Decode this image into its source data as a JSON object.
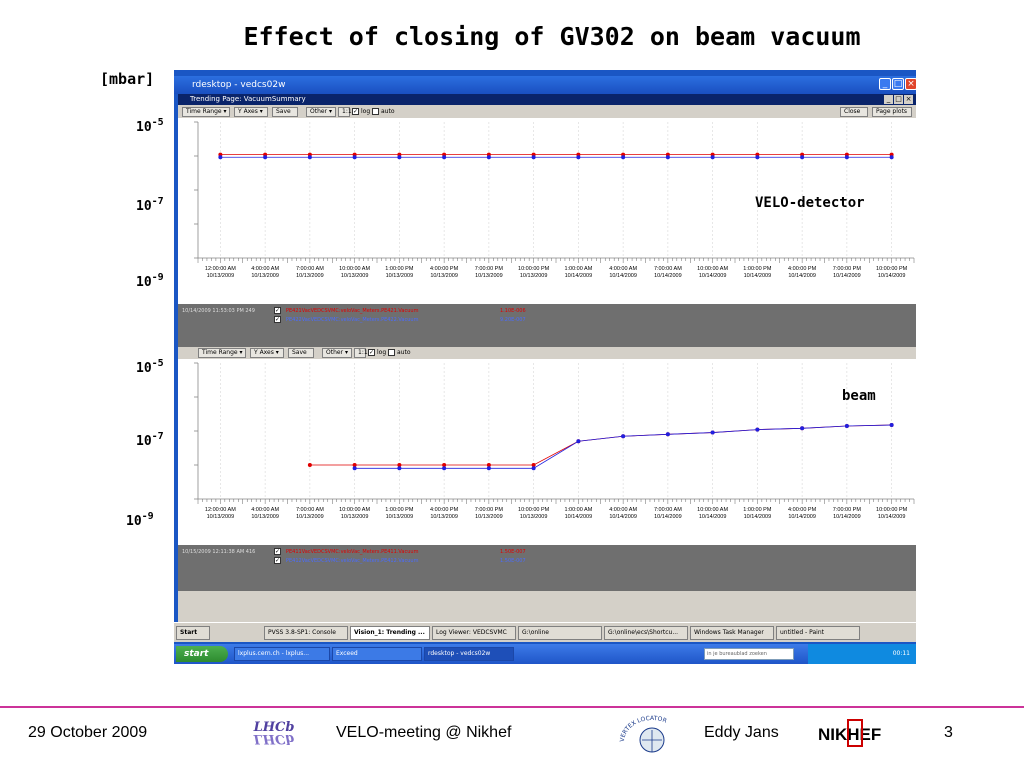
{
  "slide": {
    "title": "Effect of closing of GV302 on beam vacuum",
    "unit": "[mbar]",
    "axis_top": [
      {
        "base": "10",
        "exp": "-5"
      },
      {
        "base": "10",
        "exp": "-7"
      },
      {
        "base": "10",
        "exp": "-9"
      }
    ],
    "axis_bottom": [
      {
        "base": "10",
        "exp": "-5"
      },
      {
        "base": "10",
        "exp": "-7"
      },
      {
        "base": "10",
        "exp": "-9"
      }
    ],
    "annot_top": "VELO-detector",
    "annot_bottom": "beam"
  },
  "rdesktop": {
    "title": "rdesktop - vedcs02w",
    "trend_title": "Trending Page: VacuumSummary"
  },
  "toolbar": {
    "time_range": "Time Range",
    "y_axes": "Y Axes",
    "save": "Save",
    "other": "Other",
    "ratio": "1:1",
    "log": "log",
    "auto": "auto",
    "close": "Close",
    "page_plots": "Page plots"
  },
  "time_labels": [
    {
      "t": "12:00:00 AM",
      "d": "10/13/2009"
    },
    {
      "t": "4:00:00 AM",
      "d": "10/13/2009"
    },
    {
      "t": "7:00:00 AM",
      "d": "10/13/2009"
    },
    {
      "t": "10:00:00 AM",
      "d": "10/13/2009"
    },
    {
      "t": "1:00:00 PM",
      "d": "10/13/2009"
    },
    {
      "t": "4:00:00 PM",
      "d": "10/13/2009"
    },
    {
      "t": "7:00:00 PM",
      "d": "10/13/2009"
    },
    {
      "t": "10:00:00 PM",
      "d": "10/13/2009"
    },
    {
      "t": "1:00:00 AM",
      "d": "10/14/2009"
    },
    {
      "t": "4:00:00 AM",
      "d": "10/14/2009"
    },
    {
      "t": "7:00:00 AM",
      "d": "10/14/2009"
    },
    {
      "t": "10:00:00 AM",
      "d": "10/14/2009"
    },
    {
      "t": "1:00:00 PM",
      "d": "10/14/2009"
    },
    {
      "t": "4:00:00 PM",
      "d": "10/14/2009"
    },
    {
      "t": "7:00:00 PM",
      "d": "10/14/2009"
    },
    {
      "t": "10:00:00 PM",
      "d": "10/14/2009"
    }
  ],
  "panel_top": {
    "timestamp": "10/14/2009 11:53:03 PM 249",
    "lines": [
      {
        "label": "PE421VacVEDCSVMC:veloVac_Meters.PE421.Vacuum",
        "value": "1.10E-006",
        "color": "#e00000"
      },
      {
        "label": "PE422VacVEDCSVMC:veloVac_Meters.PE422.Vacuum",
        "value": "9.20E-007",
        "color": "#2020e0"
      }
    ]
  },
  "panel_bottom": {
    "timestamp": "10/15/2009 12:11:38 AM 416",
    "lines": [
      {
        "label": "PE411VacVEDCSVMC:veloVac_Meters.PE411.Vacuum",
        "value": "1.50E-007",
        "color": "#e00000"
      },
      {
        "label": "PE412VacVEDCSVMC:veloVac_Meters.PE412.Vacuum",
        "value": "1.50E-007",
        "color": "#2020e0"
      }
    ]
  },
  "taskbar_inner": {
    "start": "Start",
    "tasks": [
      "PVSS 3.8-SP1: Console",
      "Vision_1: Trending ...",
      "Log Viewer: VEDCSVMC",
      "G:\\online",
      "G:\\online\\ecs\\Shortcu...",
      "Windows Task Manager",
      "untitled - Paint"
    ]
  },
  "taskbar_outer": {
    "start": "start",
    "tasks": [
      "lxplus.cern.ch - lxplus...",
      "Exceed",
      "rdesktop - vedcs02w"
    ],
    "search": "in je bureaublad zoeken",
    "clock": "00:11"
  },
  "footer": {
    "date": "29 October 2009",
    "lhcb": "LHCb",
    "meeting": "VELO-meeting @ Nikhef",
    "vertex": "VERTEX LOCATOR",
    "author": "Eddy Jans",
    "nikhef": "NIKHEF",
    "page": "3"
  },
  "colors": {
    "red_series": "#e00000",
    "blue_series": "#2020e0",
    "accent_line": "#cc3399"
  },
  "chart_data": [
    {
      "type": "scatter",
      "title": "",
      "ylabel": "[mbar]",
      "log_scale": true,
      "x": [
        "12:00:00 AM 10/13/2009",
        "4:00:00 AM 10/13/2009",
        "7:00:00 AM 10/13/2009",
        "10:00:00 AM 10/13/2009",
        "1:00:00 PM 10/13/2009",
        "4:00:00 PM 10/13/2009",
        "7:00:00 PM 10/13/2009",
        "10:00:00 PM 10/13/2009",
        "1:00:00 AM 10/14/2009",
        "4:00:00 AM 10/14/2009",
        "7:00:00 AM 10/14/2009",
        "10:00:00 AM 10/14/2009",
        "1:00:00 PM 10/14/2009",
        "4:00:00 PM 10/14/2009",
        "7:00:00 PM 10/14/2009",
        "10:00:00 PM 10/14/2009"
      ],
      "series": [
        {
          "name": "PE421VacVEDCSVMC:veloVac_Meters.PE421.Vacuum",
          "values": [
            1.1e-06,
            1.1e-06,
            1.1e-06,
            1.1e-06,
            1.1e-06,
            1.1e-06,
            1.1e-06,
            1.1e-06,
            1.1e-06,
            1.1e-06,
            1.1e-06,
            1.1e-06,
            1.1e-06,
            1.1e-06,
            1.1e-06,
            1.1e-06
          ]
        },
        {
          "name": "PE422VacVEDCSVMC:veloVac_Meters.PE422.Vacuum",
          "values": [
            9.2e-07,
            9.2e-07,
            9.2e-07,
            9.2e-07,
            9.2e-07,
            9.2e-07,
            9.2e-07,
            9.2e-07,
            9.2e-07,
            9.2e-07,
            9.2e-07,
            9.2e-07,
            9.2e-07,
            9.2e-07,
            9.2e-07,
            9.2e-07
          ]
        }
      ]
    },
    {
      "type": "scatter",
      "title": "",
      "ylabel": "[mbar]",
      "log_scale": true,
      "x": [
        "12:00:00 AM 10/13/2009",
        "4:00:00 AM 10/13/2009",
        "7:00:00 AM 10/13/2009",
        "10:00:00 AM 10/13/2009",
        "1:00:00 PM 10/13/2009",
        "4:00:00 PM 10/13/2009",
        "7:00:00 PM 10/13/2009",
        "10:00:00 PM 10/13/2009",
        "1:00:00 AM 10/14/2009",
        "4:00:00 AM 10/14/2009",
        "7:00:00 AM 10/14/2009",
        "10:00:00 AM 10/14/2009",
        "1:00:00 PM 10/14/2009",
        "4:00:00 PM 10/14/2009",
        "7:00:00 PM 10/14/2009",
        "10:00:00 PM 10/14/2009"
      ],
      "series": [
        {
          "name": "PE411VacVEDCSVMC:veloVac_Meters.PE411.Vacuum",
          "values": [
            null,
            null,
            1e-08,
            1e-08,
            1e-08,
            1e-08,
            1e-08,
            1e-08,
            5e-08,
            7e-08,
            8e-08,
            9e-08,
            1.1e-07,
            1.2e-07,
            1.4e-07,
            1.5e-07
          ]
        },
        {
          "name": "PE412VacVEDCSVMC:veloVac_Meters.PE412.Vacuum",
          "values": [
            null,
            null,
            null,
            8e-09,
            8e-09,
            8e-09,
            8e-09,
            8e-09,
            5e-08,
            7e-08,
            8e-08,
            9e-08,
            1.1e-07,
            1.2e-07,
            1.4e-07,
            1.5e-07
          ]
        }
      ]
    }
  ]
}
